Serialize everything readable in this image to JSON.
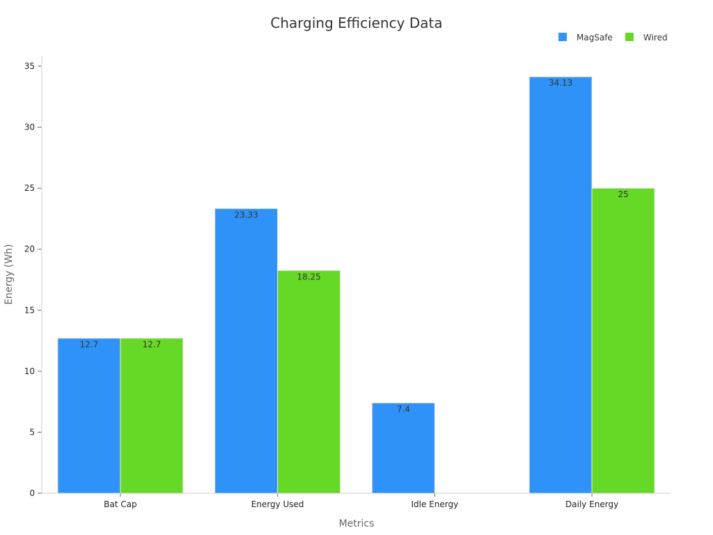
{
  "colors": {
    "magsafe": "#2f92f8",
    "wired": "#66d926",
    "axis": "#cccccc",
    "tick": "#666666"
  },
  "chart_data": {
    "type": "bar",
    "title": "Charging Efficiency Data",
    "xlabel": "Metrics",
    "ylabel": "Energy (Wh)",
    "categories": [
      "Bat Cap",
      "Energy Used",
      "Idle Energy",
      "Daily Energy"
    ],
    "series": [
      {
        "name": "MagSafe",
        "values": [
          12.7,
          23.33,
          7.4,
          34.13
        ],
        "labels": [
          "12.7",
          "23.33",
          "7.4",
          "34.13"
        ]
      },
      {
        "name": "Wired",
        "values": [
          12.7,
          18.25,
          null,
          25
        ],
        "labels": [
          "12.7",
          "18.25",
          "",
          "25"
        ]
      }
    ],
    "ylim": [
      0,
      35
    ],
    "yticks": [
      "0",
      "5",
      "10",
      "15",
      "20",
      "25",
      "30",
      "35"
    ],
    "ytick_values": [
      0,
      5,
      10,
      15,
      20,
      25,
      30,
      35
    ],
    "grid": false,
    "legend": "top-right"
  }
}
